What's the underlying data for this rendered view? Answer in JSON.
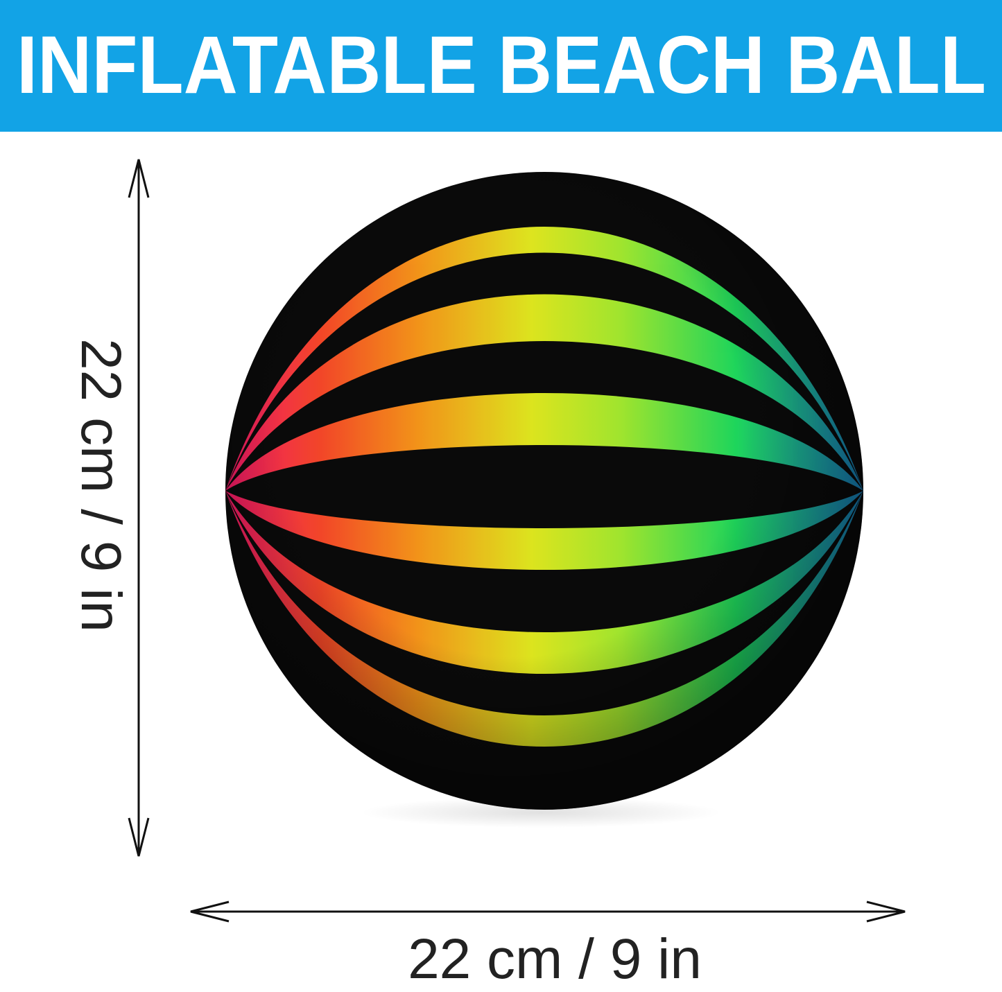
{
  "banner": {
    "title": "INFLATABLE BEACH BALL",
    "color": "#12a3e6"
  },
  "dimensions": {
    "height_label": "22 cm / 9 in",
    "width_label": "22 cm / 9 in"
  },
  "ball": {
    "base_color": "#0a0a0a",
    "stripe_colors": [
      "#ff1a6e",
      "#ff4a2a",
      "#ff9a1a",
      "#e8f020",
      "#a8f030",
      "#20e060",
      "#1a8ad0"
    ]
  }
}
